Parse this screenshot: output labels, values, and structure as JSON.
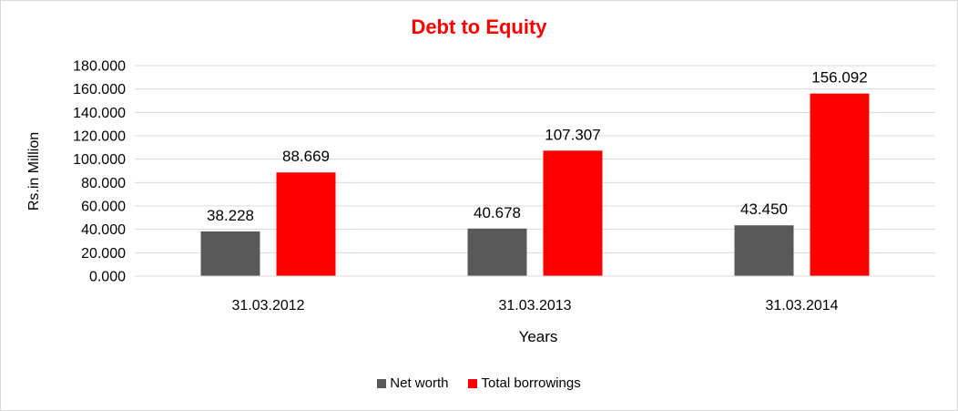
{
  "chart_data": {
    "type": "bar",
    "title": "Debt to Equity",
    "xlabel": "Years",
    "ylabel": "Rs.in Million",
    "categories": [
      "31.03.2012",
      "31.03.2013",
      "31.03.2014"
    ],
    "series": [
      {
        "name": "Net worth",
        "color": "#595959",
        "values": [
          38.228,
          40.678,
          43.45
        ],
        "labels": [
          "38.228",
          "40.678",
          "43.450"
        ]
      },
      {
        "name": "Total borrowings",
        "color": "#ff0000",
        "values": [
          88.669,
          107.307,
          156.092
        ],
        "labels": [
          "88.669",
          "107.307",
          "156.092"
        ]
      }
    ],
    "ylim": [
      0,
      180
    ],
    "yticks": [
      "0.000",
      "20.000",
      "40.000",
      "60.000",
      "80.000",
      "100.000",
      "120.000",
      "140.000",
      "160.000",
      "180.000"
    ],
    "grid": true,
    "legend_position": "bottom"
  }
}
